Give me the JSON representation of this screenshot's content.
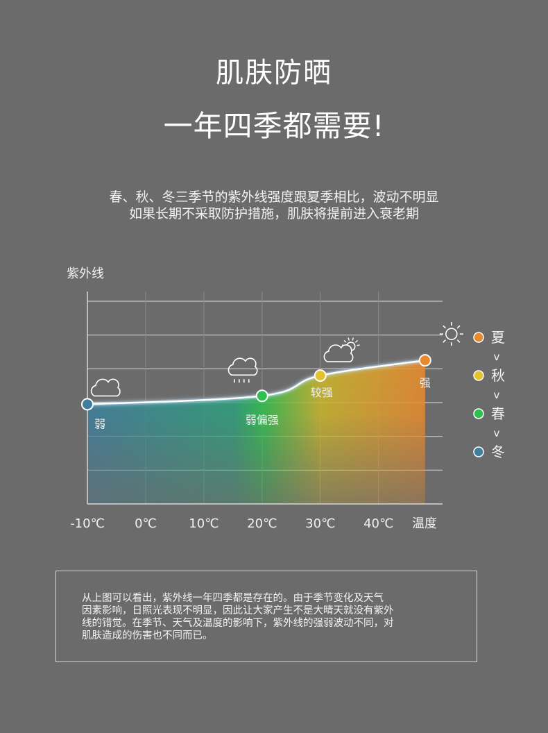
{
  "heading": {
    "line1": "肌肤防晒",
    "line2": "一年四季都需要!"
  },
  "intro": {
    "line1": "春、秋、冬三季节的紫外线强度跟夏季相比，波动不明显",
    "line2": "如果长期不采取防护措施，肌肤将提前进入衰老期"
  },
  "chart_data": {
    "type": "line",
    "ylabel": "紫外线",
    "xlabel": "温度",
    "x_ticks": [
      "-10℃",
      "0℃",
      "10℃",
      "20℃",
      "30℃",
      "40℃"
    ],
    "x_tick_values": [
      -10,
      0,
      10,
      20,
      30,
      40
    ],
    "xlim": [
      -10,
      51
    ],
    "ylim": [
      0,
      6
    ],
    "gridlines_y": 6,
    "grid": true,
    "points": [
      {
        "season": "冬",
        "x": -10,
        "y": 2.95,
        "label": "弱",
        "color": "#3f7e9c",
        "icon": "cloud-icon"
      },
      {
        "season": "春",
        "x": 20,
        "y": 3.2,
        "label": "弱偏强",
        "color": "#2fbf4f",
        "icon": "rain-cloud-icon"
      },
      {
        "season": "秋",
        "x": 30,
        "y": 3.8,
        "label": "较强",
        "color": "#e6c22a",
        "icon": "partly-sunny-icon"
      },
      {
        "season": "夏",
        "x": 48,
        "y": 4.25,
        "label": "强",
        "color": "#e8892f",
        "icon": "sun-icon"
      }
    ],
    "legend": {
      "position": "right",
      "items": [
        {
          "label": "夏",
          "color": "#e8892f"
        },
        {
          "label": "秋",
          "color": "#e6c22a"
        },
        {
          "label": "春",
          "color": "#2fbf4f"
        },
        {
          "label": "冬",
          "color": "#3f7e9c"
        }
      ],
      "separator": "v"
    }
  },
  "note": {
    "line1": "从上图可以看出，紫外线一年四季都是存在的。由于季节变化及天气",
    "line2": "因素影响，日照光表现不明显，因此让大家产生不是大晴天就没有紫外",
    "line3": "线的错觉。在季节、天气及温度的影响下，紫外线的强弱波动不同，对",
    "line4": "肌肤造成的伤害也不同而已。"
  }
}
